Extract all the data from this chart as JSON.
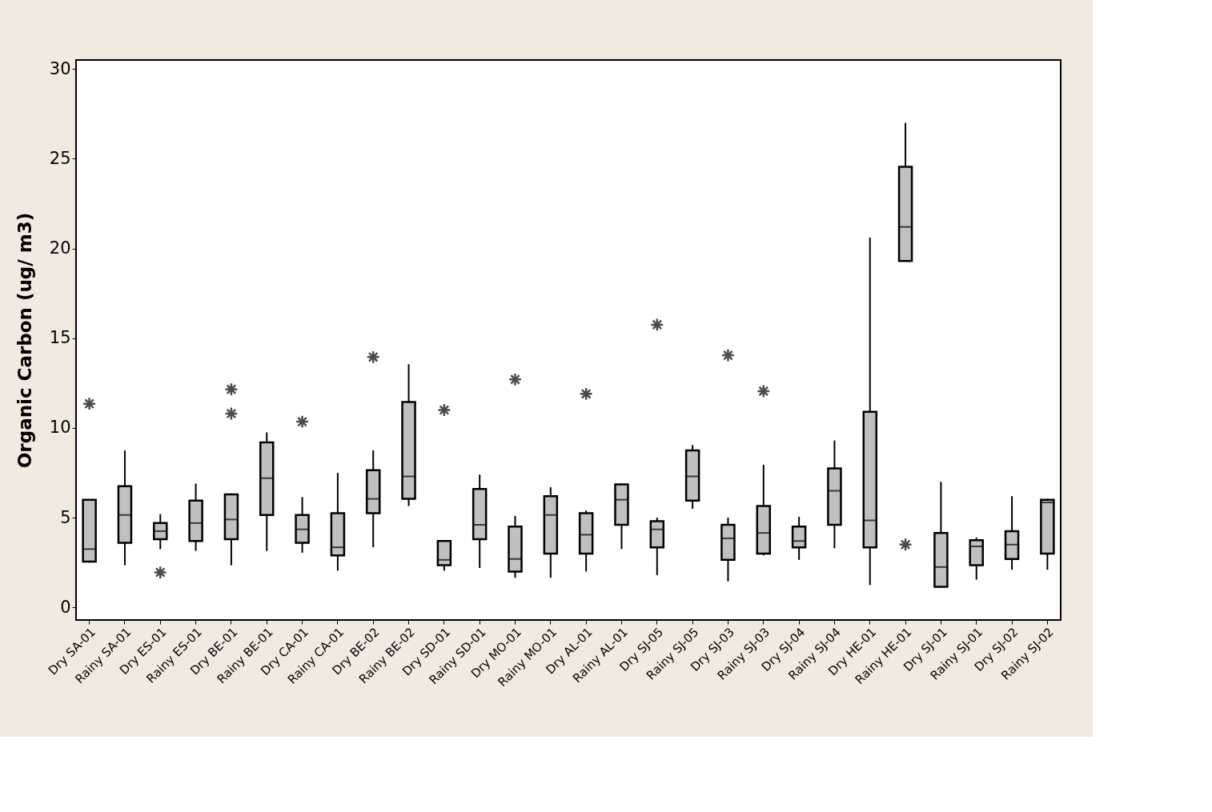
{
  "chart_data": {
    "type": "box",
    "ylabel": "Organic Carbon (ug/ m3)",
    "categories": [
      "Dry SA-01",
      "Rainy SA-01",
      "Dry ES-01",
      "Rainy ES-01",
      "Dry BE-01",
      "Rainy BE-01",
      "Dry CA-01",
      "Rainy CA-01",
      "Dry BE-02",
      "Rainy BE-02",
      "Dry SD-01",
      "Rainy SD-01",
      "Dry MO-01",
      "Rainy MO-01",
      "Dry AL-01",
      "Rainy AL-01",
      "Dry SJ-05",
      "Rainy SJ-05",
      "Dry SJ-03",
      "Rainy SJ-03",
      "Dry SJ-04",
      "Rainy SJ-04",
      "Dry HE-01",
      "Rainy HE-01",
      "Dry SJ-01",
      "Rainy SJ-01",
      "Dry SJ-02",
      "Rainy SJ-02"
    ],
    "ylim": [
      -0.7,
      30.5
    ],
    "yticks": [
      0,
      5,
      10,
      15,
      20,
      25,
      30
    ],
    "grid": false,
    "series": [
      {
        "color": "#c0c0c0",
        "boxes": [
          {
            "low": 2.5,
            "q1": 2.55,
            "median": 3.25,
            "q3": 6.0,
            "high": 6.0,
            "outliers": [
              11.35
            ]
          },
          {
            "low": 2.35,
            "q1": 3.6,
            "median": 5.15,
            "q3": 6.75,
            "high": 8.75
          },
          {
            "low": 3.25,
            "q1": 3.8,
            "median": 4.25,
            "q3": 4.7,
            "high": 5.2,
            "outliers": [
              1.95
            ]
          },
          {
            "low": 3.15,
            "q1": 3.7,
            "median": 4.7,
            "q3": 5.95,
            "high": 6.9
          },
          {
            "low": 2.35,
            "q1": 3.8,
            "median": 4.9,
            "q3": 6.3,
            "high": 6.35,
            "outliers": [
              12.15,
              10.8
            ]
          },
          {
            "low": 3.15,
            "q1": 5.15,
            "median": 7.2,
            "q3": 9.2,
            "high": 9.75
          },
          {
            "low": 3.05,
            "q1": 3.6,
            "median": 4.35,
            "q3": 5.15,
            "high": 6.15,
            "outliers": [
              10.35
            ]
          },
          {
            "low": 2.05,
            "q1": 2.9,
            "median": 3.35,
            "q3": 5.25,
            "high": 7.5
          },
          {
            "low": 3.35,
            "q1": 5.25,
            "median": 6.05,
            "q3": 7.65,
            "high": 8.75,
            "outliers": [
              13.95
            ]
          },
          {
            "low": 5.65,
            "q1": 6.05,
            "median": 7.3,
            "q3": 11.45,
            "high": 13.55
          },
          {
            "low": 2.05,
            "q1": 2.35,
            "median": 2.65,
            "q3": 3.7,
            "high": 3.75,
            "outliers": [
              11.0
            ]
          },
          {
            "low": 2.2,
            "q1": 3.8,
            "median": 4.6,
            "q3": 6.6,
            "high": 7.4
          },
          {
            "low": 1.65,
            "q1": 2.0,
            "median": 2.7,
            "q3": 4.5,
            "high": 5.1,
            "outliers": [
              12.7
            ]
          },
          {
            "low": 1.65,
            "q1": 3.0,
            "median": 5.15,
            "q3": 6.2,
            "high": 6.7
          },
          {
            "low": 2.0,
            "q1": 3.0,
            "median": 4.05,
            "q3": 5.25,
            "high": 5.4,
            "outliers": [
              11.9
            ]
          },
          {
            "low": 3.25,
            "q1": 4.6,
            "median": 6.0,
            "q3": 6.85,
            "high": 6.9
          },
          {
            "low": 1.8,
            "q1": 3.35,
            "median": 4.35,
            "q3": 4.8,
            "high": 5.0,
            "outliers": [
              15.75
            ]
          },
          {
            "low": 5.5,
            "q1": 5.95,
            "median": 7.3,
            "q3": 8.75,
            "high": 9.05
          },
          {
            "low": 1.45,
            "q1": 2.65,
            "median": 3.85,
            "q3": 4.6,
            "high": 5.0,
            "outliers": [
              14.05
            ]
          },
          {
            "low": 2.9,
            "q1": 3.0,
            "median": 4.15,
            "q3": 5.65,
            "high": 7.95,
            "outliers": [
              12.05
            ]
          },
          {
            "low": 2.65,
            "q1": 3.35,
            "median": 3.7,
            "q3": 4.5,
            "high": 5.05
          },
          {
            "low": 3.3,
            "q1": 4.6,
            "median": 6.5,
            "q3": 7.75,
            "high": 9.3
          },
          {
            "low": 1.25,
            "q1": 3.35,
            "median": 4.85,
            "q3": 10.9,
            "high": 20.6
          },
          {
            "low": 19.3,
            "q1": 19.3,
            "median": 21.2,
            "q3": 24.55,
            "high": 27.0,
            "outliers": [
              3.5
            ]
          },
          {
            "low": 1.1,
            "q1": 1.15,
            "median": 2.25,
            "q3": 4.15,
            "high": 7.0
          },
          {
            "low": 1.55,
            "q1": 2.35,
            "median": 3.4,
            "q3": 3.75,
            "high": 3.9
          },
          {
            "low": 2.1,
            "q1": 2.7,
            "median": 3.5,
            "q3": 4.25,
            "high": 6.2
          },
          {
            "low": 2.1,
            "q1": 3.0,
            "median": 5.85,
            "q3": 6.0,
            "high": 6.05
          }
        ]
      }
    ]
  }
}
